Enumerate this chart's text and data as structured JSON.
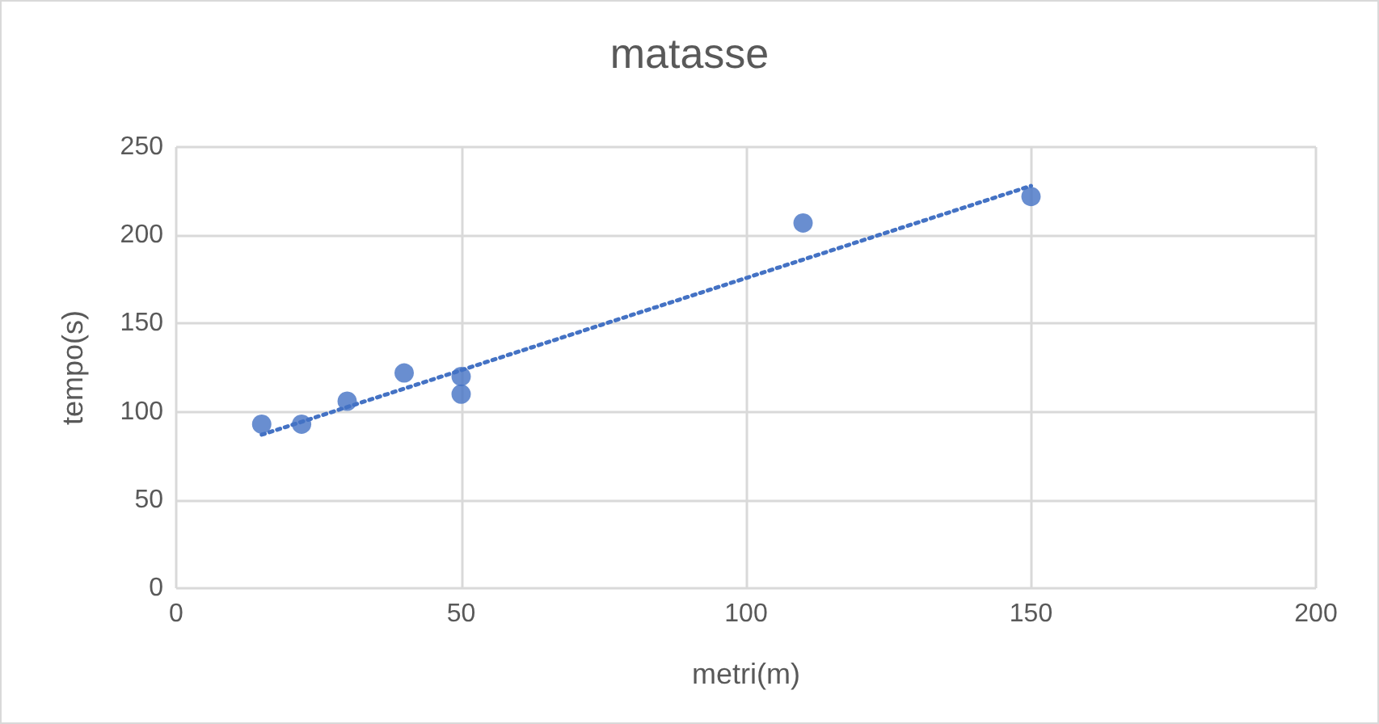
{
  "chart_data": {
    "type": "scatter",
    "title": "matasse",
    "xlabel": "metri(m)",
    "ylabel": "tempo(s)",
    "xlim": [
      0,
      200
    ],
    "xticks": [
      0,
      50,
      100,
      150,
      200
    ],
    "ylim": [
      0,
      250
    ],
    "yticks": [
      0,
      50,
      100,
      150,
      200,
      250
    ],
    "grid": true,
    "marker": "circle",
    "series": [
      {
        "color": "#4472c4",
        "x": [
          15,
          22,
          30,
          40,
          50,
          50,
          110,
          150
        ],
        "values": [
          93,
          93,
          106,
          122,
          120,
          110,
          207,
          222
        ]
      },
      {
        "type": "line",
        "color": "#4472c4",
        "marker": "none",
        "line_style": "dotted",
        "x": [
          15,
          150
        ],
        "values": [
          87,
          228
        ]
      }
    ]
  }
}
